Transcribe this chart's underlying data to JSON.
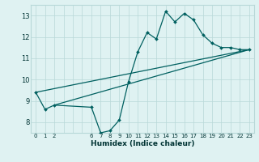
{
  "title": "",
  "xlabel": "Humidex (Indice chaleur)",
  "ylabel": "",
  "bg_color": "#dff2f2",
  "grid_color": "#b8d8d8",
  "line_color": "#006060",
  "xlim": [
    -0.5,
    23.5
  ],
  "ylim": [
    7.5,
    13.5
  ],
  "xticks_all": [
    0,
    1,
    2,
    3,
    4,
    5,
    6,
    7,
    8,
    9,
    10,
    11,
    12,
    13,
    14,
    15,
    16,
    17,
    18,
    19,
    20,
    21,
    22,
    23
  ],
  "xtick_labels": [
    "0",
    "1",
    "2",
    "",
    "",
    "",
    "6",
    "7",
    "8",
    "9",
    "10",
    "11",
    "12",
    "13",
    "14",
    "15",
    "16",
    "17",
    "18",
    "19",
    "20",
    "21",
    "22",
    "23"
  ],
  "yticks": [
    8,
    9,
    10,
    11,
    12,
    13
  ],
  "line1_x": [
    0,
    1,
    2,
    6,
    7,
    8,
    9,
    10,
    11,
    12,
    13,
    14,
    15,
    16,
    17,
    18,
    19,
    20,
    21,
    22,
    23
  ],
  "line1_y": [
    9.4,
    8.6,
    8.8,
    8.7,
    7.5,
    7.6,
    8.1,
    9.9,
    11.3,
    12.2,
    11.9,
    13.2,
    12.7,
    13.1,
    12.8,
    12.1,
    11.7,
    11.5,
    11.5,
    11.4,
    11.4
  ],
  "line2_x": [
    0,
    23
  ],
  "line2_y": [
    9.4,
    11.4
  ],
  "line3_x": [
    2,
    23
  ],
  "line3_y": [
    8.8,
    11.4
  ]
}
